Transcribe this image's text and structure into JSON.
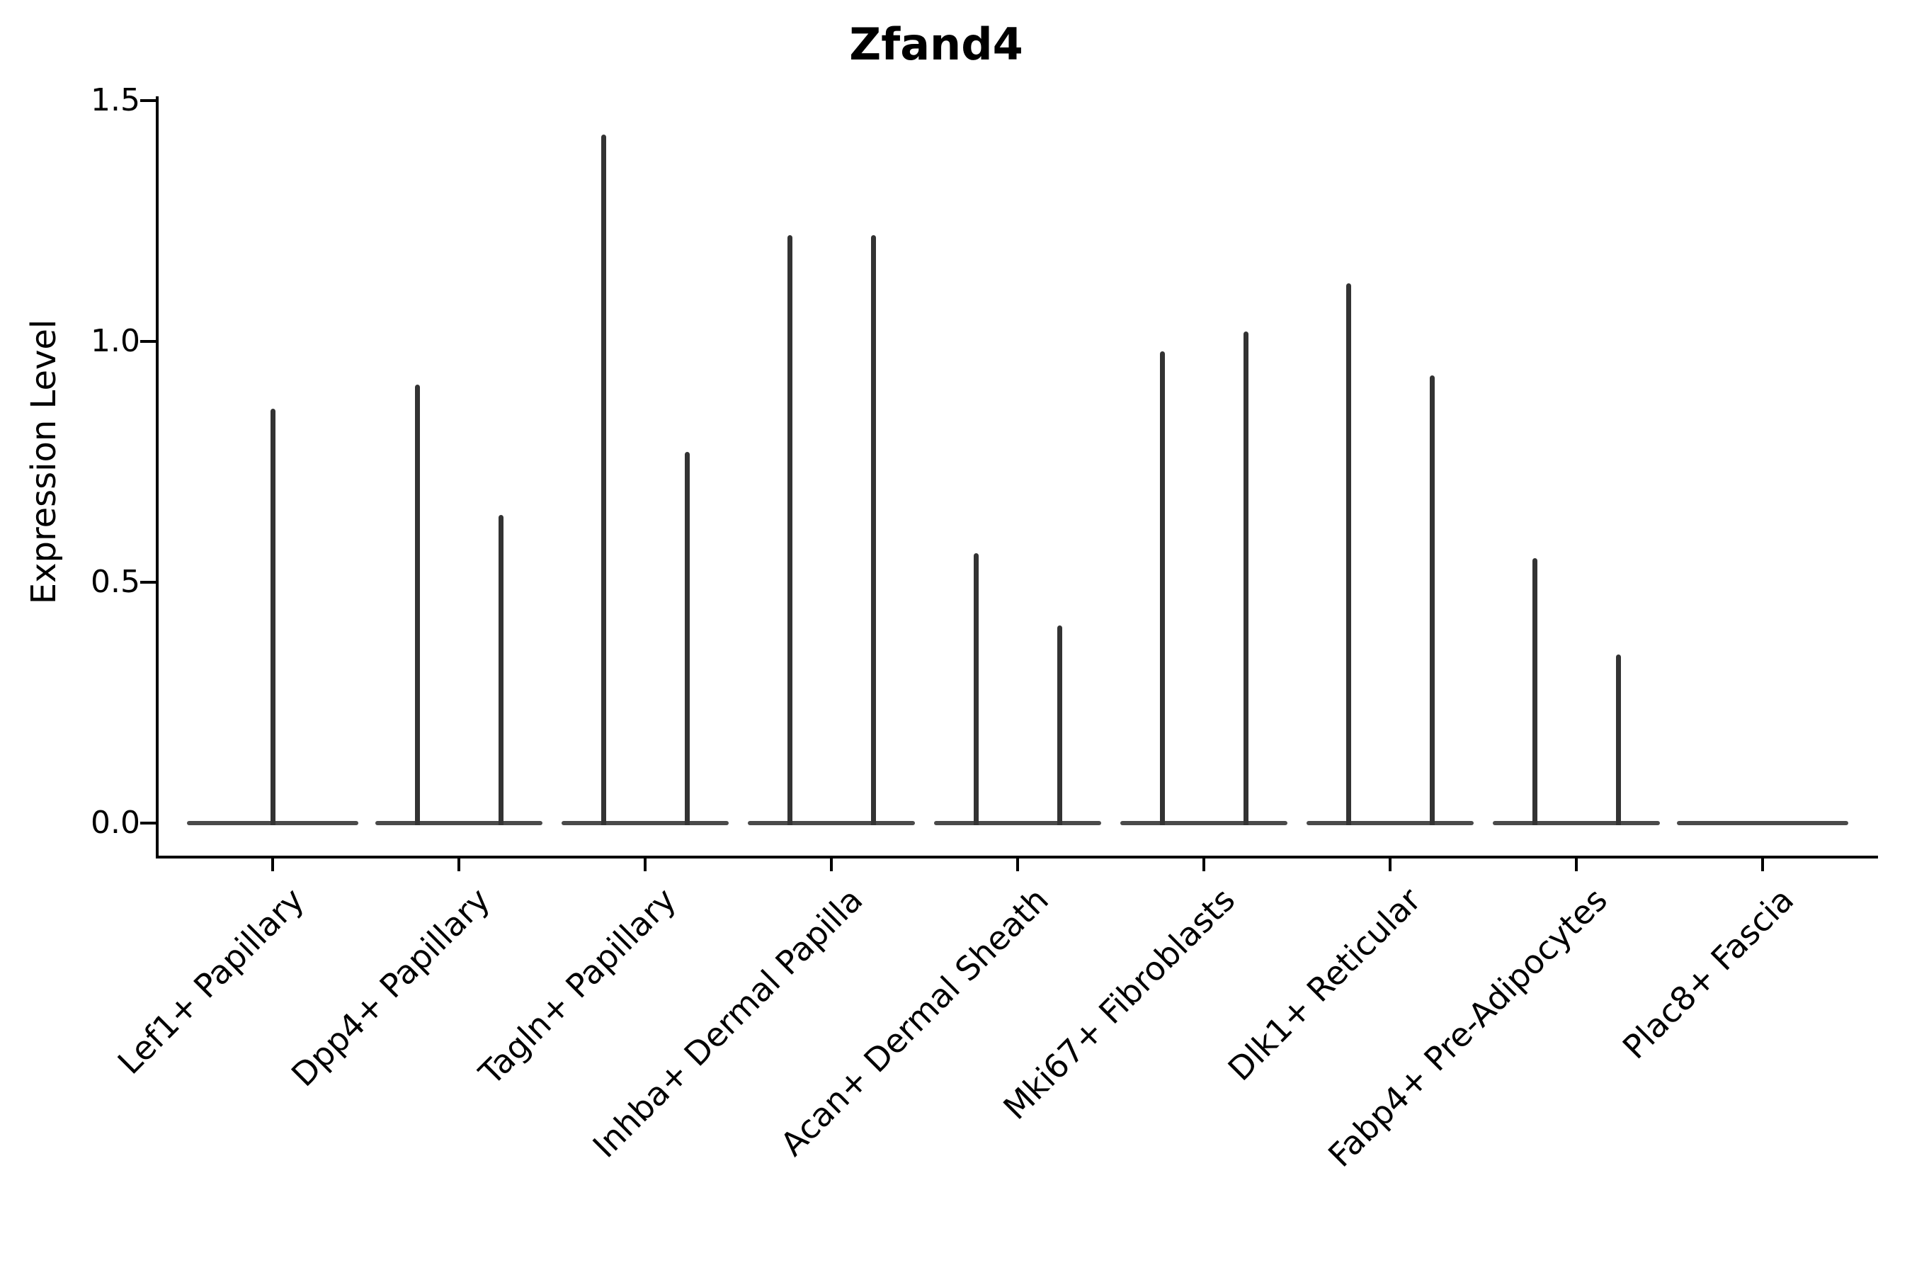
{
  "title": "Zfand4",
  "axes": {
    "ylabel": "Expression Level",
    "ytick_labels": [
      "0.0",
      "0.5",
      "1.0",
      "1.5"
    ]
  },
  "chart_data": {
    "type": "violin",
    "title": "Zfand4",
    "xlabel": "",
    "ylabel": "Expression Level",
    "ylim": [
      -0.07,
      1.54
    ],
    "yticks": [
      0.0,
      0.5,
      1.0,
      1.5
    ],
    "grid": false,
    "legend": "none",
    "categories": [
      "Lef1+ Papillary",
      "Dpp4+ Papillary",
      "Tagln+ Papillary",
      "Inhba+ Dermal Papilla",
      "Acan+ Dermal Sheath",
      "Mki67+ Fibroblasts",
      "Dlk1+ Reticular",
      "Fabp4+ Pre-Adipocytes",
      "Plac8+ Fascia"
    ],
    "violins": [
      {
        "category": "Lef1+ Papillary",
        "split": false,
        "baseline": 0,
        "maxima": [
          0.86
        ]
      },
      {
        "category": "Dpp4+ Papillary",
        "split": true,
        "baseline": 0,
        "maxima": [
          0.91,
          0.64
        ]
      },
      {
        "category": "Tagln+ Papillary",
        "split": true,
        "baseline": 0,
        "maxima": [
          1.43,
          0.77
        ]
      },
      {
        "category": "Inhba+ Dermal Papilla",
        "split": true,
        "baseline": 0,
        "maxima": [
          1.22,
          1.22
        ]
      },
      {
        "category": "Acan+ Dermal Sheath",
        "split": true,
        "baseline": 0,
        "maxima": [
          0.56,
          0.41
        ]
      },
      {
        "category": "Mki67+ Fibroblasts",
        "split": true,
        "baseline": 0,
        "maxima": [
          0.98,
          1.02
        ]
      },
      {
        "category": "Dlk1+ Reticular",
        "split": true,
        "baseline": 0,
        "maxima": [
          1.12,
          0.93
        ]
      },
      {
        "category": "Fabp4+ Pre-Adipocytes",
        "split": true,
        "baseline": 0,
        "maxima": [
          0.55,
          0.35
        ]
      },
      {
        "category": "Plac8+ Fascia",
        "split": false,
        "baseline": 0,
        "maxima": []
      }
    ],
    "colors": {
      "violin_line": "#333333",
      "violin_base": "#4a4a4a",
      "spine": "#000000",
      "text": "#000000",
      "background": "#ffffff"
    }
  }
}
